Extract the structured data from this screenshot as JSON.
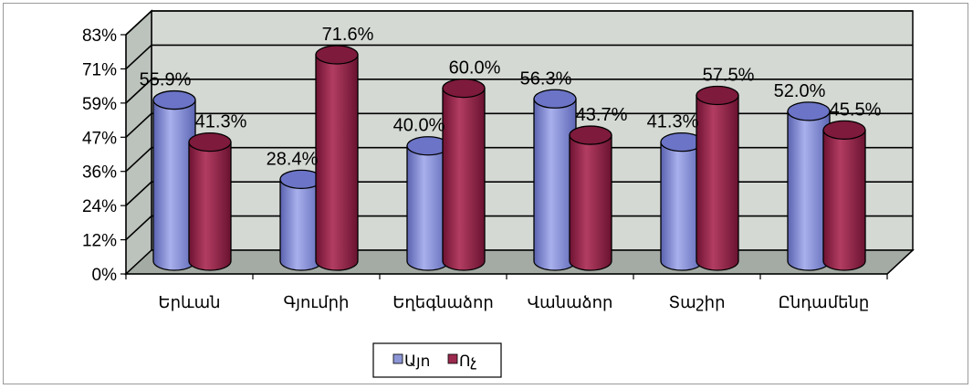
{
  "chart_data": {
    "type": "bar",
    "style": "3d-cylinder",
    "categories": [
      "Երևան",
      "Գյումրի",
      "Եղեգնաձոր",
      "Վանաձոր",
      "Տաշիր",
      "Ընդամենը"
    ],
    "series": [
      {
        "name": "Այո",
        "values": [
          55.9,
          28.4,
          40.0,
          56.3,
          41.3,
          52.0
        ],
        "labels": [
          "55.9%",
          "28.4%",
          "40.0%",
          "56.3%",
          "41.3%",
          "52.0%"
        ]
      },
      {
        "name": "Ոչ",
        "values": [
          41.3,
          71.6,
          60.0,
          43.7,
          57.5,
          45.5
        ],
        "labels": [
          "41.3%",
          "71.6%",
          "60.0%",
          "43.7%",
          "57.5%",
          "45.5%"
        ]
      }
    ],
    "yticks": [
      "0%",
      "12%",
      "24%",
      "36%",
      "47%",
      "59%",
      "71%",
      "83%"
    ],
    "ylim": [
      0,
      83
    ],
    "grid": true,
    "legend": "bottom",
    "colors": {
      "series1": "#8c96d6",
      "series2": "#9b2a4e",
      "wall": "#d4d9d4",
      "floor": "#a4aaa4"
    }
  }
}
